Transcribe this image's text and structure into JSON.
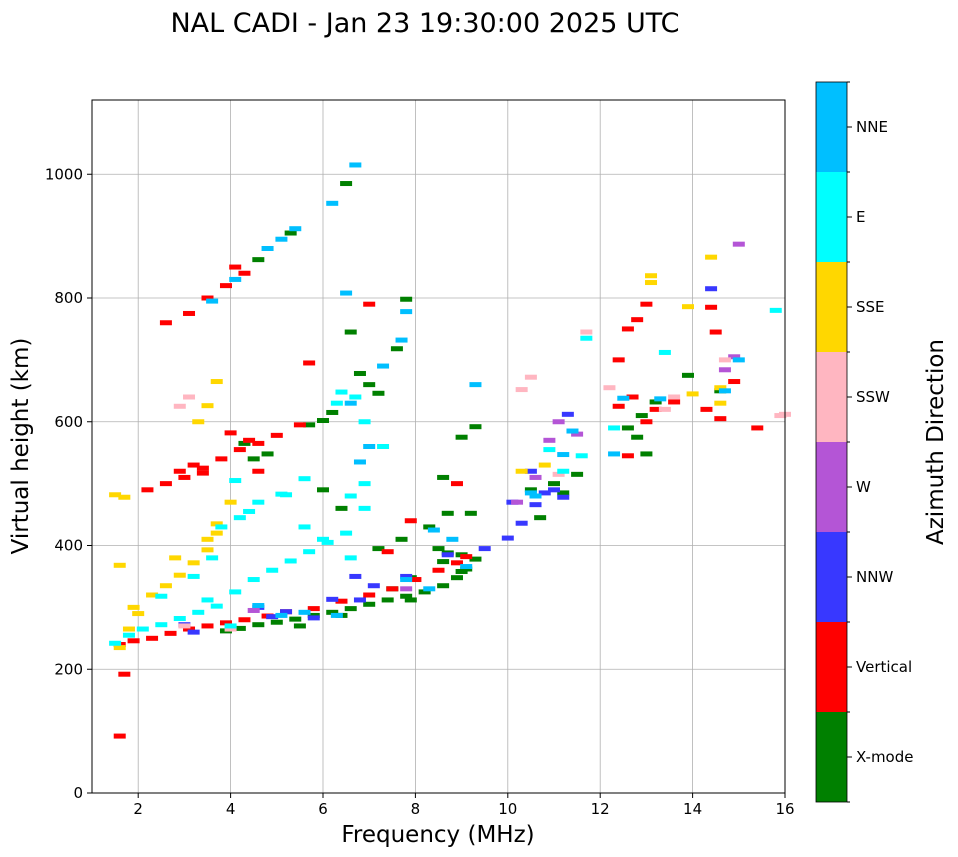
{
  "chart_data": {
    "type": "scatter",
    "title": "NAL CADI - Jan 23 19:30:00 2025 UTC",
    "xlabel": "Frequency (MHz)",
    "ylabel": "Virtual height (km)",
    "xlim": [
      1,
      16
    ],
    "ylim": [
      0,
      1120
    ],
    "xticks": [
      2,
      4,
      6,
      8,
      10,
      12,
      14,
      16
    ],
    "yticks": [
      0,
      200,
      400,
      600,
      800,
      1000
    ],
    "grid": true,
    "colorbar": {
      "label": "Azimuth Direction",
      "categories": [
        "X-mode",
        "Vertical",
        "NNW",
        "W",
        "SSW",
        "SSE",
        "E",
        "NNE"
      ],
      "colors": [
        "#008000",
        "#ff0000",
        "#3838ff",
        "#b455d6",
        "#ffb6c1",
        "#ffd700",
        "#00ffff",
        "#00bfff"
      ]
    },
    "series": [
      {
        "name": "X-mode",
        "points": [
          [
            3.9,
            262
          ],
          [
            4.2,
            266
          ],
          [
            4.6,
            272
          ],
          [
            5.0,
            276
          ],
          [
            5.4,
            281
          ],
          [
            5.8,
            287
          ],
          [
            6.2,
            292
          ],
          [
            6.6,
            298
          ],
          [
            7.0,
            305
          ],
          [
            7.4,
            312
          ],
          [
            7.8,
            318
          ],
          [
            8.2,
            325
          ],
          [
            8.6,
            335
          ],
          [
            8.9,
            348
          ],
          [
            9.1,
            362
          ],
          [
            9.3,
            378
          ],
          [
            8.7,
            388
          ],
          [
            8.6,
            374
          ],
          [
            9.0,
            358
          ],
          [
            8.3,
            430
          ],
          [
            8.7,
            452
          ],
          [
            9.3,
            592
          ],
          [
            9.0,
            575
          ],
          [
            10.5,
            490
          ],
          [
            11.0,
            500
          ],
          [
            11.5,
            515
          ],
          [
            12.6,
            590
          ],
          [
            12.9,
            610
          ],
          [
            13.0,
            548
          ],
          [
            12.8,
            575
          ],
          [
            13.9,
            675
          ],
          [
            14.6,
            650
          ],
          [
            13.2,
            632
          ],
          [
            6.5,
            985
          ],
          [
            6.6,
            745
          ],
          [
            7.0,
            660
          ],
          [
            6.8,
            678
          ],
          [
            7.2,
            646
          ],
          [
            6.2,
            615
          ],
          [
            5.7,
            595
          ],
          [
            6.0,
            602
          ],
          [
            7.6,
            718
          ],
          [
            7.8,
            798
          ],
          [
            5.3,
            905
          ],
          [
            4.6,
            862
          ],
          [
            6.0,
            490
          ],
          [
            6.4,
            460
          ],
          [
            7.2,
            395
          ],
          [
            7.5,
            330
          ],
          [
            7.9,
            312
          ],
          [
            4.3,
            565
          ],
          [
            4.5,
            540
          ],
          [
            4.8,
            548
          ],
          [
            9.0,
            385
          ],
          [
            8.5,
            395
          ],
          [
            7.9,
            348
          ],
          [
            8.6,
            510
          ],
          [
            9.2,
            452
          ],
          [
            10.7,
            445
          ],
          [
            11.2,
            485
          ],
          [
            5.5,
            270
          ],
          [
            6.4,
            287
          ],
          [
            7.7,
            410
          ]
        ]
      },
      {
        "name": "Vertical",
        "points": [
          [
            1.6,
            240
          ],
          [
            1.9,
            246
          ],
          [
            2.3,
            250
          ],
          [
            2.7,
            258
          ],
          [
            3.1,
            265
          ],
          [
            3.5,
            270
          ],
          [
            3.9,
            275
          ],
          [
            4.3,
            280
          ],
          [
            4.8,
            286
          ],
          [
            5.2,
            293
          ],
          [
            5.8,
            298
          ],
          [
            6.4,
            310
          ],
          [
            7.0,
            320
          ],
          [
            7.5,
            330
          ],
          [
            8.0,
            345
          ],
          [
            8.5,
            360
          ],
          [
            8.9,
            372
          ],
          [
            9.1,
            382
          ],
          [
            2.2,
            490
          ],
          [
            2.6,
            500
          ],
          [
            3.0,
            510
          ],
          [
            3.4,
            525
          ],
          [
            3.8,
            540
          ],
          [
            4.2,
            555
          ],
          [
            4.6,
            565
          ],
          [
            5.0,
            578
          ],
          [
            5.5,
            595
          ],
          [
            3.5,
            800
          ],
          [
            3.9,
            820
          ],
          [
            4.1,
            850
          ],
          [
            4.3,
            840
          ],
          [
            3.1,
            775
          ],
          [
            2.6,
            760
          ],
          [
            4.0,
            582
          ],
          [
            4.4,
            570
          ],
          [
            3.2,
            530
          ],
          [
            2.9,
            520
          ],
          [
            12.4,
            625
          ],
          [
            12.7,
            640
          ],
          [
            13.0,
            600
          ],
          [
            13.2,
            620
          ],
          [
            13.0,
            790
          ],
          [
            12.8,
            765
          ],
          [
            12.6,
            750
          ],
          [
            14.6,
            605
          ],
          [
            15.4,
            590
          ],
          [
            14.4,
            785
          ],
          [
            14.5,
            745
          ],
          [
            14.9,
            665
          ],
          [
            12.4,
            700
          ],
          [
            12.6,
            545
          ],
          [
            7.4,
            390
          ],
          [
            7.9,
            440
          ],
          [
            8.9,
            500
          ],
          [
            5.7,
            695
          ],
          [
            1.6,
            92
          ],
          [
            1.7,
            192
          ],
          [
            7.0,
            790
          ],
          [
            13.6,
            632
          ],
          [
            14.3,
            620
          ],
          [
            3.4,
            517
          ],
          [
            4.6,
            520
          ]
        ]
      },
      {
        "name": "NNW",
        "points": [
          [
            3.0,
            272
          ],
          [
            4.6,
            300
          ],
          [
            5.2,
            293
          ],
          [
            5.8,
            283
          ],
          [
            6.8,
            312
          ],
          [
            7.8,
            350
          ],
          [
            8.7,
            385
          ],
          [
            9.5,
            395
          ],
          [
            10.0,
            412
          ],
          [
            10.3,
            436
          ],
          [
            10.6,
            466
          ],
          [
            10.8,
            485
          ],
          [
            11.2,
            478
          ],
          [
            11.0,
            490
          ],
          [
            7.1,
            335
          ],
          [
            6.7,
            350
          ],
          [
            10.1,
            470
          ],
          [
            10.5,
            520
          ],
          [
            11.3,
            612
          ],
          [
            14.4,
            815
          ],
          [
            3.2,
            260
          ],
          [
            4.9,
            285
          ],
          [
            6.2,
            313
          ]
        ]
      },
      {
        "name": "W",
        "points": [
          [
            15.0,
            887
          ],
          [
            14.9,
            705
          ],
          [
            10.9,
            570
          ],
          [
            10.2,
            470
          ],
          [
            11.5,
            580
          ],
          [
            14.7,
            684
          ],
          [
            11.1,
            600
          ],
          [
            10.6,
            510
          ],
          [
            7.8,
            330
          ],
          [
            4.5,
            295
          ]
        ]
      },
      {
        "name": "SSW",
        "points": [
          [
            16.0,
            612
          ],
          [
            15.9,
            610
          ],
          [
            13.6,
            640
          ],
          [
            13.4,
            620
          ],
          [
            12.2,
            655
          ],
          [
            10.3,
            652
          ],
          [
            11.7,
            745
          ],
          [
            10.5,
            672
          ],
          [
            2.9,
            625
          ],
          [
            3.1,
            640
          ],
          [
            14.7,
            700
          ],
          [
            11.1,
            515
          ],
          [
            3.0,
            270
          ],
          [
            4.0,
            265
          ]
        ]
      },
      {
        "name": "SSE",
        "points": [
          [
            1.6,
            235
          ],
          [
            1.6,
            368
          ],
          [
            1.9,
            300
          ],
          [
            2.3,
            320
          ],
          [
            2.6,
            335
          ],
          [
            2.9,
            352
          ],
          [
            3.2,
            372
          ],
          [
            3.5,
            393
          ],
          [
            3.7,
            420
          ],
          [
            4.0,
            470
          ],
          [
            3.7,
            435
          ],
          [
            3.5,
            410
          ],
          [
            14.6,
            630
          ],
          [
            14.6,
            655
          ],
          [
            14.4,
            866
          ],
          [
            13.1,
            836
          ],
          [
            13.9,
            786
          ],
          [
            14.0,
            645
          ],
          [
            13.1,
            825
          ],
          [
            3.5,
            626
          ],
          [
            3.7,
            665
          ],
          [
            3.3,
            600
          ],
          [
            10.8,
            530
          ],
          [
            10.3,
            520
          ],
          [
            1.7,
            478
          ],
          [
            1.5,
            482
          ],
          [
            2.0,
            290
          ],
          [
            1.8,
            265
          ],
          [
            2.8,
            380
          ]
        ]
      },
      {
        "name": "E",
        "points": [
          [
            1.5,
            242
          ],
          [
            1.8,
            255
          ],
          [
            2.1,
            265
          ],
          [
            2.5,
            272
          ],
          [
            2.9,
            282
          ],
          [
            3.3,
            292
          ],
          [
            3.7,
            302
          ],
          [
            4.1,
            325
          ],
          [
            4.5,
            345
          ],
          [
            4.9,
            360
          ],
          [
            5.3,
            375
          ],
          [
            5.7,
            390
          ],
          [
            6.1,
            405
          ],
          [
            6.5,
            420
          ],
          [
            3.2,
            350
          ],
          [
            3.6,
            380
          ],
          [
            4.2,
            445
          ],
          [
            4.6,
            470
          ],
          [
            5.1,
            483
          ],
          [
            5.6,
            430
          ],
          [
            6.6,
            480
          ],
          [
            6.9,
            460
          ],
          [
            6.3,
            630
          ],
          [
            6.4,
            648
          ],
          [
            6.7,
            640
          ],
          [
            6.9,
            600
          ],
          [
            6.9,
            500
          ],
          [
            7.3,
            560
          ],
          [
            5.6,
            508
          ],
          [
            4.4,
            455
          ],
          [
            4.1,
            505
          ],
          [
            3.8,
            430
          ],
          [
            10.9,
            555
          ],
          [
            11.6,
            545
          ],
          [
            12.3,
            590
          ],
          [
            13.4,
            712
          ],
          [
            11.7,
            735
          ],
          [
            6.6,
            380
          ],
          [
            6.0,
            410
          ],
          [
            5.2,
            482
          ],
          [
            15.8,
            780
          ],
          [
            11.2,
            520
          ],
          [
            2.5,
            318
          ],
          [
            3.5,
            312
          ],
          [
            4.0,
            270
          ]
        ]
      },
      {
        "name": "NNE",
        "points": [
          [
            4.6,
            303
          ],
          [
            5.1,
            287
          ],
          [
            5.6,
            292
          ],
          [
            6.3,
            287
          ],
          [
            6.6,
            630
          ],
          [
            7.7,
            732
          ],
          [
            4.8,
            880
          ],
          [
            5.1,
            895
          ],
          [
            5.4,
            912
          ],
          [
            3.6,
            795
          ],
          [
            4.1,
            830
          ],
          [
            8.4,
            425
          ],
          [
            8.8,
            410
          ],
          [
            9.3,
            660
          ],
          [
            10.5,
            485
          ],
          [
            11.2,
            547
          ],
          [
            11.4,
            585
          ],
          [
            12.3,
            548
          ],
          [
            15.0,
            700
          ],
          [
            14.7,
            650
          ],
          [
            13.3,
            637
          ],
          [
            10.6,
            480
          ],
          [
            6.5,
            808
          ],
          [
            7.8,
            778
          ],
          [
            7.3,
            690
          ],
          [
            7.0,
            560
          ],
          [
            6.8,
            535
          ],
          [
            7.8,
            345
          ],
          [
            8.3,
            330
          ],
          [
            9.1,
            366
          ],
          [
            12.5,
            638
          ],
          [
            6.2,
            953
          ],
          [
            6.7,
            1015
          ]
        ]
      }
    ]
  }
}
